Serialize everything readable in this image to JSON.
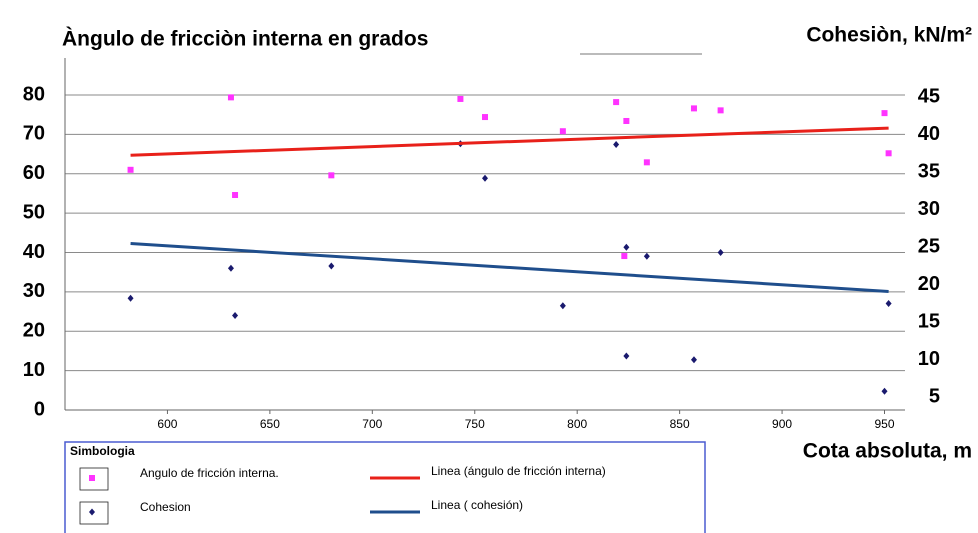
{
  "chart_data": {
    "type": "scatter",
    "y_label": "Àngulo de fricciòn interna en grados",
    "y2_label": "Cohesiòn, kN/m²",
    "x_label": "Cota absoluta, m",
    "xlim": [
      550,
      960
    ],
    "xticks": [
      600,
      650,
      700,
      750,
      800,
      850,
      900,
      950
    ],
    "ylim": [
      0,
      80
    ],
    "yticks": [
      0,
      10,
      20,
      30,
      40,
      50,
      60,
      70,
      80
    ],
    "y2lim": [
      3.3,
      45.3
    ],
    "y2ticks": [
      5,
      10,
      15,
      20,
      25,
      30,
      35,
      40,
      45
    ],
    "grid": true,
    "legend": {
      "title": "Simbologia",
      "position": "bottom"
    },
    "series": [
      {
        "name": "Angulo de fricción interna.",
        "type": "scatter",
        "marker": "square",
        "color": "#ff33ff",
        "x": [
          582,
          631,
          633,
          680,
          743,
          755,
          793,
          819,
          824,
          823,
          834,
          857,
          870,
          950,
          952
        ],
        "values": [
          61,
          79.4,
          54.6,
          59.6,
          79,
          74.4,
          70.8,
          78.2,
          73.4,
          39.1,
          62.9,
          76.6,
          76.1,
          75.4,
          65.2
        ]
      },
      {
        "name": "Cohesion",
        "type": "scatter",
        "marker": "diamond",
        "color": "#1a1a6e",
        "axis": "y2",
        "x": [
          582,
          631,
          633,
          680,
          743,
          755,
          793,
          819,
          824,
          824,
          834,
          857,
          870,
          950,
          952
        ],
        "values": [
          18.2,
          22.2,
          15.9,
          22.5,
          38.8,
          34.2,
          17.2,
          38.7,
          25,
          10.5,
          23.8,
          10,
          24.3,
          5.8,
          17.5
        ]
      },
      {
        "name": "Linea (ángulo de fricción interna)",
        "type": "line",
        "color": "#e8211a",
        "x": [
          582,
          952
        ],
        "values": [
          64.7,
          71.6
        ]
      },
      {
        "name": "Linea ( cohesión)",
        "type": "line",
        "color": "#1f4e8c",
        "axis": "y2",
        "x": [
          582,
          952
        ],
        "values": [
          25.5,
          19.1
        ]
      }
    ]
  }
}
